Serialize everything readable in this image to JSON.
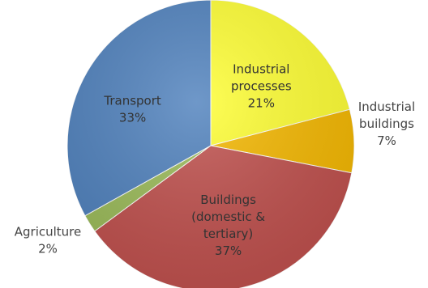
{
  "chart_data": {
    "type": "pie",
    "slices": [
      {
        "label": "Industrial processes",
        "label_lines": [
          "Industrial",
          "processes"
        ],
        "value": 21,
        "value_text": "21%",
        "color": "#ffff33",
        "label_position": "inside"
      },
      {
        "label": "Industrial buildings",
        "label_lines": [
          "Industrial",
          "buildings"
        ],
        "value": 7,
        "value_text": "7%",
        "color": "#f5b800",
        "label_position": "outside"
      },
      {
        "label": "Buildings (domestic & tertiary)",
        "label_lines": [
          "Buildings",
          "(domestic &",
          "tertiary)"
        ],
        "value": 37,
        "value_text": "37%",
        "color": "#c0504d",
        "label_position": "inside"
      },
      {
        "label": "Agriculture",
        "label_lines": [
          "Agriculture"
        ],
        "value": 2,
        "value_text": "2%",
        "color": "#9bbb59",
        "label_position": "outside"
      },
      {
        "label": "Transport",
        "label_lines": [
          "Transport"
        ],
        "value": 33,
        "value_text": "33%",
        "color": "#4f81bd",
        "label_position": "inside"
      }
    ],
    "start_angle": "12 o'clock",
    "direction": "clockwise",
    "legend": "none"
  }
}
